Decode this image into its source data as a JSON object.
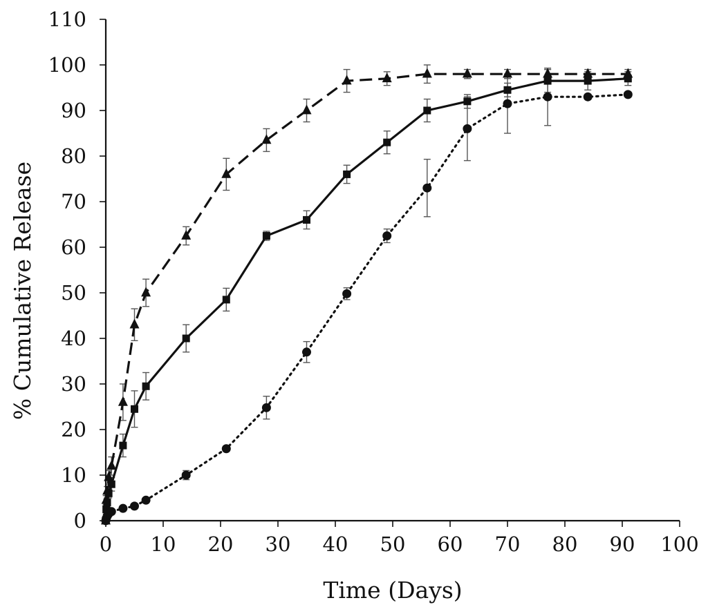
{
  "chart_data": {
    "type": "line",
    "title": "",
    "xlabel": "Time (Days)",
    "ylabel": "% Cumulative Release",
    "xlim": [
      0,
      100
    ],
    "ylim": [
      0,
      110
    ],
    "xticks": [
      0,
      10,
      20,
      30,
      40,
      50,
      60,
      70,
      80,
      90,
      100
    ],
    "yticks": [
      0,
      10,
      20,
      30,
      40,
      50,
      60,
      70,
      80,
      90,
      100,
      110
    ],
    "grid": false,
    "legend": null,
    "series": [
      {
        "name": "triangle-dashed",
        "marker": "triangle",
        "line_style": "dashed",
        "x": [
          0,
          0.08,
          0.25,
          0.5,
          1,
          3,
          5,
          7,
          14,
          21,
          28,
          35,
          42,
          49,
          56,
          63,
          70,
          77,
          84,
          91
        ],
        "y": [
          0,
          4.5,
          6.5,
          9.5,
          12,
          26,
          43,
          50,
          62.5,
          76,
          83.5,
          90,
          96.5,
          97,
          98,
          98,
          98,
          98,
          98,
          98
        ],
        "error": [
          0,
          1,
          1,
          1.5,
          2,
          4,
          3.5,
          3,
          2,
          3.5,
          2.5,
          2.5,
          2.5,
          1.5,
          2,
          1,
          1,
          1,
          1,
          1
        ]
      },
      {
        "name": "square-solid",
        "marker": "square",
        "line_style": "solid",
        "x": [
          0,
          0.08,
          0.25,
          0.5,
          1,
          3,
          5,
          7,
          14,
          21,
          28,
          35,
          42,
          49,
          56,
          63,
          70,
          77,
          84,
          91
        ],
        "y": [
          0,
          2.5,
          4,
          6,
          8,
          16.5,
          24.5,
          29.5,
          40,
          48.5,
          62.5,
          66,
          76,
          83,
          90,
          92,
          94.5,
          96.5,
          96.5,
          97
        ],
        "error": [
          0,
          1,
          1,
          1,
          1.5,
          2.5,
          4,
          3,
          3,
          2.5,
          1,
          2,
          2,
          2.5,
          2.5,
          1.5,
          1.5,
          2.5,
          2,
          1.5
        ]
      },
      {
        "name": "circle-dotted",
        "marker": "circle",
        "line_style": "dotted",
        "x": [
          0,
          0.08,
          0.25,
          0.5,
          1,
          3,
          5,
          7,
          14,
          21,
          28,
          35,
          42,
          49,
          56,
          63,
          70,
          77,
          84,
          91
        ],
        "y": [
          0,
          0.5,
          1,
          1.5,
          2,
          2.7,
          3.2,
          4.5,
          10,
          15.8,
          24.8,
          37,
          49.8,
          62.5,
          73,
          86,
          91.5,
          93,
          93,
          93.5
        ],
        "error": [
          0,
          0.3,
          0.3,
          0.5,
          0.5,
          0.5,
          0.5,
          0.5,
          1,
          0.5,
          2.5,
          2.3,
          1.3,
          1.5,
          6.3,
          7,
          6.5,
          6.3,
          0.5,
          0.5
        ]
      }
    ]
  }
}
